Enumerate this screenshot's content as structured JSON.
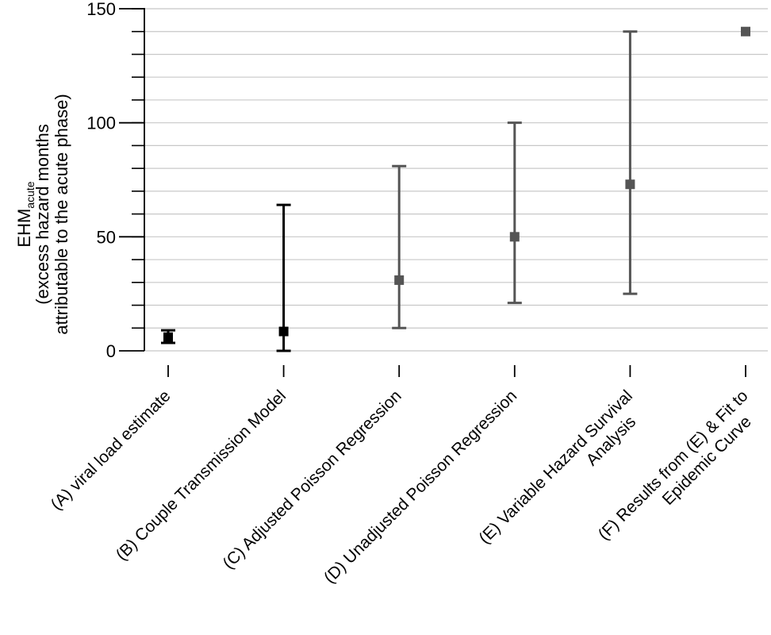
{
  "chart_data": {
    "type": "scatter",
    "title": "",
    "ylabel": {
      "main": "EHM",
      "subscript": "acute",
      "line2": "(excess hazard months",
      "line3": "attributable to the acute phase)"
    },
    "xlabel": "",
    "ylim": [
      0,
      150
    ],
    "y_ticks": [
      0,
      50,
      100,
      150
    ],
    "y_tick_labels": [
      "0",
      "50",
      "100",
      "150"
    ],
    "minor_step": 10,
    "grid": true,
    "categories": [
      {
        "label": [
          "(A) viral load estimate"
        ],
        "estimate": 6,
        "lower": 3.5,
        "upper": 9,
        "color": "#000000"
      },
      {
        "label": [
          "(B) Couple Transmission Model"
        ],
        "estimate": 8.5,
        "lower": 0,
        "upper": 64,
        "color": "#000000"
      },
      {
        "label": [
          "(C) Adjusted Poisson Regression"
        ],
        "estimate": 31,
        "lower": 10,
        "upper": 81,
        "color": "#555555"
      },
      {
        "label": [
          "(D) Unadjusted Poisson Regression"
        ],
        "estimate": 50,
        "lower": 21,
        "upper": 100,
        "color": "#555555"
      },
      {
        "label": [
          "(E) Variable Hazard Survival",
          "Analysis"
        ],
        "estimate": 73,
        "lower": 25,
        "upper": 140,
        "color": "#555555"
      },
      {
        "label": [
          "(F) Results from (E) & Fit to",
          "Epidemic Curve"
        ],
        "estimate": 140,
        "lower": null,
        "upper": null,
        "color": "#555555"
      }
    ]
  }
}
